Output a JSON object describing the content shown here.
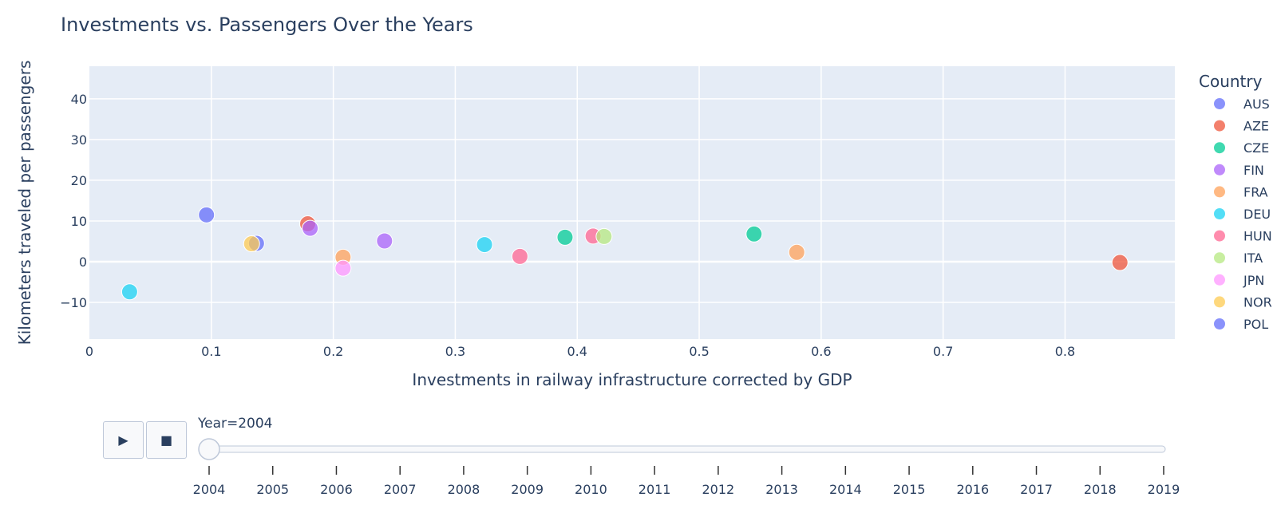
{
  "chart_data": {
    "type": "scatter",
    "title": "Investments vs. Passengers Over the Years",
    "xlabel": "Investments in railway infrastructure corrected by GDP",
    "ylabel": "Kilometers traveled per passengers",
    "xlim": [
      0,
      0.89
    ],
    "ylim": [
      -19,
      48
    ],
    "x_ticks": [
      0,
      0.1,
      0.2,
      0.3,
      0.4,
      0.5,
      0.6,
      0.7,
      0.8
    ],
    "x_tick_labels": [
      "0",
      "0.1",
      "0.2",
      "0.3",
      "0.4",
      "0.5",
      "0.6",
      "0.7",
      "0.8"
    ],
    "y_ticks": [
      -10,
      0,
      10,
      20,
      30,
      40
    ],
    "y_tick_labels": [
      "−10",
      "0",
      "10",
      "20",
      "30",
      "40"
    ],
    "grid": true,
    "legend_title": "Country",
    "legend_position": "right",
    "series": [
      {
        "name": "AUS",
        "color": "#636efa",
        "points": [
          {
            "x": 0.137,
            "y": 4.5
          }
        ]
      },
      {
        "name": "AZE",
        "color": "#EF553B",
        "points": [
          {
            "x": 0.179,
            "y": 9.3
          },
          {
            "x": 0.845,
            "y": -0.2
          }
        ]
      },
      {
        "name": "CZE",
        "color": "#00cc96",
        "points": [
          {
            "x": 0.39,
            "y": 6.0
          },
          {
            "x": 0.545,
            "y": 6.8
          }
        ]
      },
      {
        "name": "FIN",
        "color": "#ab63fa",
        "points": [
          {
            "x": 0.181,
            "y": 8.2
          },
          {
            "x": 0.242,
            "y": 5.1
          }
        ]
      },
      {
        "name": "FRA",
        "color": "#FFA15A",
        "points": [
          {
            "x": 0.208,
            "y": 1.1
          },
          {
            "x": 0.58,
            "y": 2.3
          }
        ]
      },
      {
        "name": "DEU",
        "color": "#19d3f3",
        "points": [
          {
            "x": 0.033,
            "y": -7.4
          },
          {
            "x": 0.324,
            "y": 4.2
          }
        ]
      },
      {
        "name": "HUN",
        "color": "#FF6692",
        "points": [
          {
            "x": 0.353,
            "y": 1.3
          },
          {
            "x": 0.413,
            "y": 6.3
          }
        ]
      },
      {
        "name": "ITA",
        "color": "#B6E880",
        "points": [
          {
            "x": 0.422,
            "y": 6.2
          }
        ]
      },
      {
        "name": "JPN",
        "color": "#FF97FF",
        "points": [
          {
            "x": 0.208,
            "y": -1.6
          }
        ]
      },
      {
        "name": "NOR",
        "color": "#FECB52",
        "points": [
          {
            "x": 0.133,
            "y": 4.4
          }
        ]
      },
      {
        "name": "POL",
        "color": "#636efa",
        "points": [
          {
            "x": 0.096,
            "y": 11.5
          }
        ]
      }
    ],
    "slider": {
      "label": "Year=2004",
      "current": "2004",
      "steps": [
        "2004",
        "2005",
        "2006",
        "2007",
        "2008",
        "2009",
        "2010",
        "2011",
        "2012",
        "2013",
        "2014",
        "2015",
        "2016",
        "2017",
        "2018",
        "2019"
      ]
    }
  },
  "controls": {
    "play_icon": "play-icon",
    "stop_icon": "stop-icon",
    "play_glyph": "▶",
    "stop_glyph": "■"
  }
}
